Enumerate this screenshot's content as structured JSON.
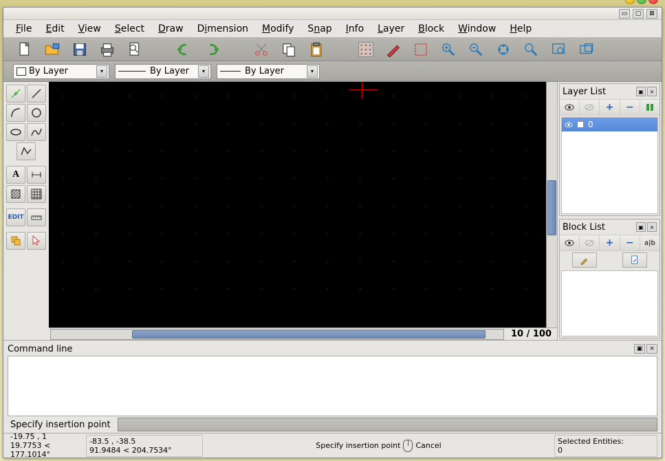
{
  "menubar": [
    "File",
    "Edit",
    "View",
    "Select",
    "Draw",
    "Dimension",
    "Modify",
    "Snap",
    "Info",
    "Layer",
    "Block",
    "Window",
    "Help"
  ],
  "combos": {
    "c1": "By Layer",
    "c2": "By Layer",
    "c3": "By Layer"
  },
  "zoom": "10 / 100",
  "layer_panel": {
    "title": "Layer List",
    "item": "0"
  },
  "block_panel": {
    "title": "Block List"
  },
  "cmdline": {
    "title": "Command line",
    "prompt": "Specify insertion point"
  },
  "status": {
    "coord1_a": "-19.75 , 1",
    "coord1_b": "19.7753 < 177.1014°",
    "coord2_a": "-83.5 , -38.5",
    "coord2_b": "91.9484 < 204.7534°",
    "msg_left": "Specify insertion point",
    "msg_right": "Cancel",
    "sel_label": "Selected Entities:",
    "sel_count": "0"
  },
  "colors": {
    "canvas_bg": "#000000",
    "crosshair": "#cc0000",
    "sel_row": "#5c92dd"
  }
}
